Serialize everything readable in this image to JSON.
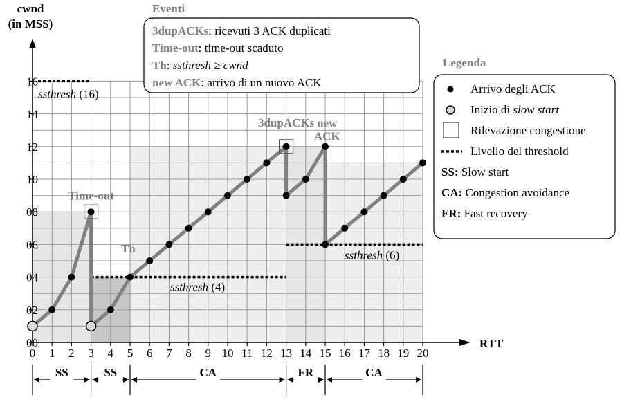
{
  "chart_data": {
    "type": "line",
    "title": "",
    "ylabel_line1": "cwnd",
    "ylabel_line2": "(in MSS)",
    "xlabel": "RTT",
    "ylim": [
      0,
      17
    ],
    "xlim": [
      0,
      20
    ],
    "grid": true,
    "y_ticks": [
      {
        "value": 0,
        "label": "00"
      },
      {
        "value": 2,
        "label": "02"
      },
      {
        "value": 4,
        "label": "04"
      },
      {
        "value": 6,
        "label": "06"
      },
      {
        "value": 8,
        "label": "08"
      },
      {
        "value": 10,
        "label": "10"
      },
      {
        "value": 12,
        "label": "12"
      },
      {
        "value": 14,
        "label": "14"
      },
      {
        "value": 16,
        "label": "16"
      }
    ],
    "x_ticks": [
      "0",
      "1",
      "2",
      "3",
      "4",
      "5",
      "6",
      "7",
      "8",
      "9",
      "10",
      "11",
      "12",
      "13",
      "14",
      "15",
      "16",
      "17",
      "18",
      "19",
      "20"
    ],
    "series": [
      {
        "points": [
          {
            "x": 0,
            "y": 1
          },
          {
            "x": 1,
            "y": 2
          },
          {
            "x": 2,
            "y": 4
          },
          {
            "x": 3,
            "y": 8
          },
          {
            "x": 3,
            "y": 1
          },
          {
            "x": 4,
            "y": 2
          },
          {
            "x": 5,
            "y": 4
          },
          {
            "x": 6,
            "y": 5
          },
          {
            "x": 7,
            "y": 6
          },
          {
            "x": 8,
            "y": 7
          },
          {
            "x": 9,
            "y": 8
          },
          {
            "x": 10,
            "y": 9
          },
          {
            "x": 11,
            "y": 10
          },
          {
            "x": 12,
            "y": 11
          },
          {
            "x": 13,
            "y": 12
          },
          {
            "x": 13,
            "y": 9
          },
          {
            "x": 14,
            "y": 10
          },
          {
            "x": 15,
            "y": 12
          },
          {
            "x": 15,
            "y": 6
          },
          {
            "x": 16,
            "y": 7
          },
          {
            "x": 17,
            "y": 8
          },
          {
            "x": 18,
            "y": 9
          },
          {
            "x": 19,
            "y": 10
          },
          {
            "x": 20,
            "y": 11
          }
        ],
        "slow_start_points": [
          {
            "x": 0,
            "y": 1
          },
          {
            "x": 3,
            "y": 1
          }
        ],
        "congestion_points": [
          {
            "x": 3,
            "y": 8
          },
          {
            "x": 13,
            "y": 12
          }
        ]
      }
    ],
    "thresholds": [
      {
        "x_start": 0,
        "x_end": 3,
        "value": 16,
        "label_name": "ssthresh",
        "label_value": "(16)"
      },
      {
        "x_start": 3,
        "x_end": 13,
        "value": 4,
        "label_name": "ssthresh",
        "label_value": "(4)"
      },
      {
        "x_start": 13,
        "x_end": 20,
        "value": 6,
        "label_name": "ssthresh",
        "label_value": "(6)"
      }
    ],
    "shaded_regions": [
      {
        "x_start": 0,
        "x_end": 3,
        "y_top": 8,
        "shade": "#e6e6e6"
      },
      {
        "x_start": 3,
        "x_end": 5,
        "y_top": 4,
        "shade": "#c8c8c8"
      },
      {
        "x_start": 5,
        "x_end": 13,
        "y_top": 12,
        "shade": "#eeeeee"
      },
      {
        "x_start": 13,
        "x_end": 15,
        "y_top": 12,
        "shade": "#e6e6e6"
      },
      {
        "x_start": 15,
        "x_end": 20,
        "y_top": 11,
        "shade": "#eeeeee"
      }
    ],
    "annotations": [
      {
        "text": "Time-out",
        "x": 3,
        "y": 9
      },
      {
        "text": "Th",
        "x": 5,
        "y": 5
      },
      {
        "text": "3dupACKs",
        "x": 13,
        "y": 13.1
      },
      {
        "text": "new",
        "x": 15.1,
        "y": 13.2
      },
      {
        "text": "ACK",
        "x": 15.1,
        "y": 12.4
      }
    ],
    "phases": [
      {
        "label": "SS",
        "x_start": 0,
        "x_end": 3
      },
      {
        "label": "SS",
        "x_start": 3,
        "x_end": 5
      },
      {
        "label": "CA",
        "x_start": 5,
        "x_end": 13
      },
      {
        "label": "FR",
        "x_start": 13,
        "x_end": 15
      },
      {
        "label": "CA",
        "x_start": 15,
        "x_end": 20
      }
    ],
    "events_box": {
      "title": "Eventi",
      "lines": [
        {
          "key": "3dupACKs",
          "text": ": ricevuti 3 ACK duplicati"
        },
        {
          "key": "Time-out",
          "text": ": time-out scaduto"
        },
        {
          "key": "Th",
          "text": ": ",
          "italic_text": "ssthresh ≥ cwnd"
        },
        {
          "key": "new ACK",
          "text": ": arrivo di un nuovo ACK"
        }
      ]
    },
    "legend": {
      "title": "Legenda",
      "items": [
        {
          "symbol": "dot",
          "text": "Arrivo degli ACK"
        },
        {
          "symbol": "circle",
          "text": "Inizio di ",
          "italic_text": "slow start"
        },
        {
          "symbol": "square",
          "text": "Rilevazione congestione"
        },
        {
          "symbol": "dash",
          "text": "Livello del threshold"
        },
        {
          "symbol": "abbr",
          "abbr": "SS:",
          "text": "Slow start"
        },
        {
          "symbol": "abbr",
          "abbr": "CA:",
          "text": "Congestion avoidance"
        },
        {
          "symbol": "abbr",
          "abbr": "FR:",
          "text": "Fast recovery"
        }
      ]
    },
    "colors": {
      "line": "#808080",
      "grid": "#9a9a9a",
      "label_gray": "#7f7f7f",
      "axis": "#000000"
    }
  }
}
